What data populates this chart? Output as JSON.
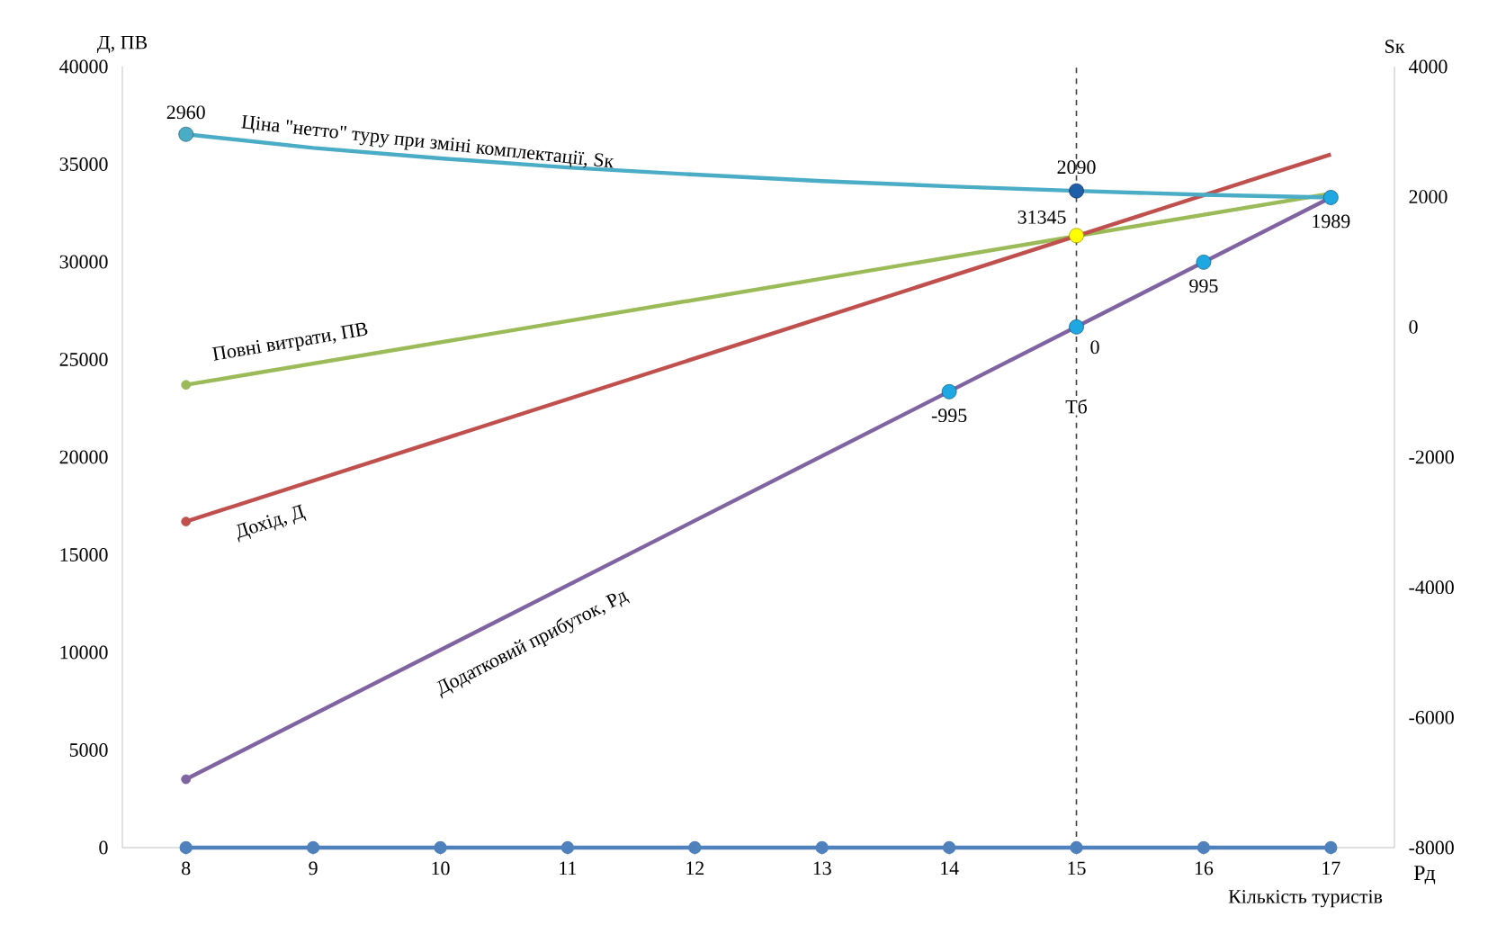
{
  "chart_data": {
    "type": "line",
    "xlabel": "Кількість туристів",
    "ylabel": "Д, ПВ",
    "y2label": "Sк",
    "xlim": [
      7.5,
      17.5
    ],
    "xticks": [
      8,
      9,
      10,
      11,
      12,
      13,
      14,
      15,
      16,
      17
    ],
    "ylim": [
      0,
      40000
    ],
    "yticks": [
      0,
      5000,
      10000,
      15000,
      20000,
      25000,
      30000,
      35000,
      40000
    ],
    "y2lim": [
      -8000,
      4000
    ],
    "y2ticks": [
      -8000,
      -6000,
      -4000,
      -2000,
      0,
      2000,
      4000
    ],
    "grid": false,
    "series": [
      {
        "name": "Ціна \"нетто\" туру при зміні комплектації, Sк",
        "axis": "y2",
        "color": "#4bacc6",
        "x": [
          8,
          9,
          10,
          11,
          12,
          13,
          14,
          15,
          16,
          17
        ],
        "values": [
          2960,
          2750,
          2590,
          2450,
          2340,
          2240,
          2160,
          2090,
          2030,
          1989
        ]
      },
      {
        "name": "Повні витрати, ПВ",
        "axis": "y",
        "color": "#9bbb59",
        "x": [
          8,
          17
        ],
        "values": [
          23700,
          33500
        ]
      },
      {
        "name": "Дохід, Д",
        "axis": "y",
        "color": "#c0504d",
        "x": [
          8,
          17
        ],
        "values": [
          16700,
          35500
        ]
      },
      {
        "name": "Додатковий прибуток, Рд",
        "axis": "y2",
        "color": "#8064a2",
        "x": [
          8,
          17
        ],
        "values": [
          -6950,
          1989
        ]
      },
      {
        "axis": "y",
        "color": "#4f81bd",
        "marker": "circle",
        "x": [
          8,
          9,
          10,
          11,
          12,
          13,
          14,
          15,
          16,
          17
        ],
        "values": [
          0,
          0,
          0,
          0,
          0,
          0,
          0,
          0,
          0,
          0
        ]
      },
      {
        "type": "scatter",
        "axis": "y2",
        "color": "#4bacc6",
        "x": [
          8
        ],
        "values": [
          2960
        ],
        "value_labels": [
          "2960"
        ]
      },
      {
        "type": "scatter",
        "axis": "y2",
        "color": "#1f5fa8",
        "x": [
          15
        ],
        "values": [
          2090
        ],
        "value_labels": [
          "2090"
        ]
      },
      {
        "type": "scatter",
        "axis": "y2",
        "color": "#1ea7e1",
        "x": [
          14,
          15,
          16,
          17
        ],
        "values": [
          -995,
          0,
          995,
          1989
        ],
        "value_labels": [
          "-995",
          "0",
          "995",
          "1989"
        ]
      },
      {
        "type": "scatter",
        "axis": "y",
        "color": "#ffff00",
        "x": [
          15
        ],
        "values": [
          31345
        ],
        "value_labels": [
          "31345"
        ]
      },
      {
        "type": "scatter",
        "axis": "y",
        "color": "#9bbb59",
        "x": [
          8
        ],
        "values": [
          23700
        ]
      },
      {
        "type": "scatter",
        "axis": "y",
        "color": "#c0504d",
        "x": [
          8
        ],
        "values": [
          16700
        ]
      },
      {
        "type": "scatter",
        "axis": "y2",
        "color": "#8064a2",
        "x": [
          8
        ],
        "values": [
          -6950
        ]
      }
    ],
    "ref_lines": [
      {
        "axis": "x",
        "value": 15,
        "label": "Тб",
        "color": "#404040",
        "line_style": "dashed"
      }
    ],
    "annotations": [
      "Рд"
    ]
  }
}
